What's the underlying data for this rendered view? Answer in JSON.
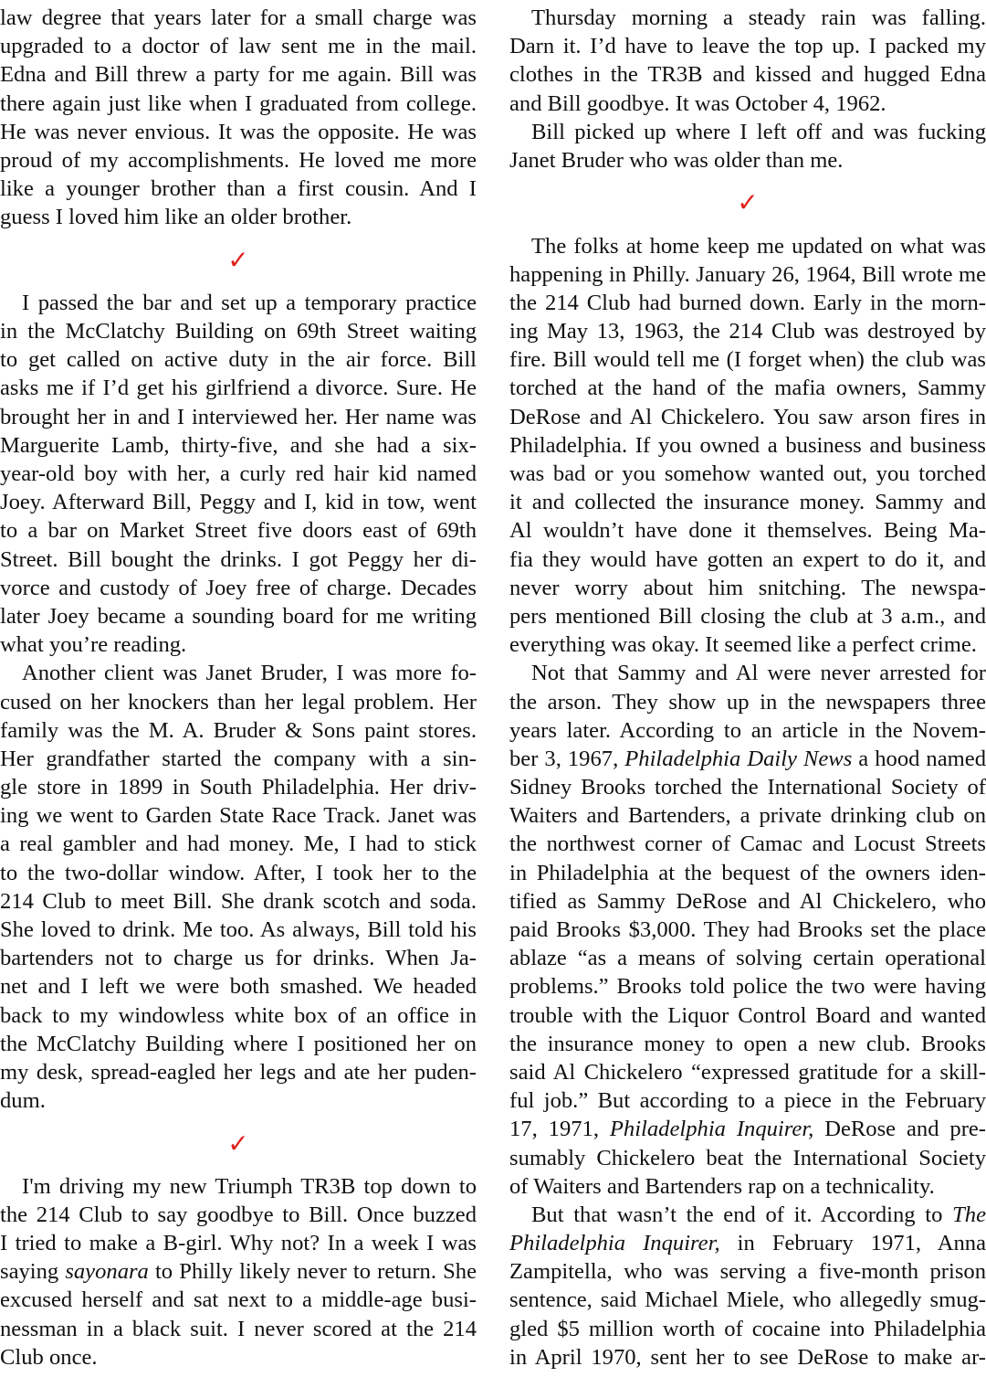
{
  "colors": {
    "text": "#111111",
    "checkmark": "#e0201c"
  },
  "separator_icon": "checkmark-icon",
  "columns": [
    {
      "blocks": [
        {
          "type": "paragraph",
          "indent": false,
          "lines": [
            "law degree that years later for a small charge was",
            "upgraded to a doctor of law sent me in the mail.",
            "Edna and Bill threw a party for me again. Bill was",
            "there again just like when I graduated from college.",
            "He was never envious. It was the opposite. He was",
            "proud of my accomplishments. He loved me more",
            "like a younger brother than a first cousin. And I",
            "guess I loved him like an older brother."
          ]
        },
        {
          "type": "separator",
          "glyph": "✓"
        },
        {
          "type": "paragraph",
          "indent": true,
          "lines": [
            "I passed the bar and set up a temporary practice",
            "in the McClatchy Building on 69th Street waiting",
            "to get called on active duty in the air force. Bill",
            "asks me if I’d get his girlfriend a divorce. Sure. He",
            "brought her in and I interviewed her. Her name was",
            "Marguerite Lamb, thirty-five, and she had a six-",
            "year-old boy with her, a curly red hair kid named",
            "Joey. Afterward Bill, Peggy and I, kid in tow, went",
            "to a bar on Market Street five doors east of 69th",
            "Street. Bill bought the drinks. I got Peggy her di-",
            "vorce and custody of Joey free of charge. Decades",
            "later Joey became a sounding board for me writing",
            "what you’re reading."
          ]
        },
        {
          "type": "paragraph",
          "indent": true,
          "lines": [
            "Another client was Janet Bruder, I was more fo-",
            "cused on her knockers than her legal problem. Her",
            "family was the M. A. Bruder & Sons paint stores.",
            "Her grandfather started the company with a sin-",
            "gle store in 1899 in South Philadelphia. Her driv-",
            "ing we went to Garden State Race Track. Janet was",
            "a real gambler and had money. Me, I had to stick",
            "to the two-dollar window. After, I took her to the",
            "214 Club to meet Bill. She drank scotch and soda.",
            "She loved to drink. Me too. As always, Bill told his",
            "bartenders not to charge us for drinks. When Ja-",
            "net and I left we were both smashed. We headed",
            "back to my windowless white box of an office in",
            "the McClatchy Building where I positioned her on",
            "my desk, spread-eagled her legs and ate her puden-",
            "dum."
          ]
        },
        {
          "type": "separator",
          "glyph": "✓"
        },
        {
          "type": "paragraph",
          "indent": true,
          "lines": [
            "I'm driving my new Triumph TR3B top down to",
            "the 214 Club to say goodbye to Bill. Once buzzed",
            "I tried to make a B-girl. Why not? In a week I was",
            [
              {
                "text": "saying "
              },
              {
                "text": "sayonara",
                "italic": true
              },
              {
                "text": " to Philly likely never to return. She"
              }
            ],
            "excused herself and sat next to a middle-age busi-",
            "nessman in a black suit. I never scored at the 214",
            "Club once."
          ]
        }
      ]
    },
    {
      "blocks": [
        {
          "type": "paragraph",
          "indent": true,
          "lines": [
            "Thursday morning a steady rain was falling.",
            "Darn it. I’d have to leave the top up. I packed my",
            "clothes in the TR3B and kissed and hugged Edna",
            "and Bill goodbye. It was October 4, 1962."
          ]
        },
        {
          "type": "paragraph",
          "indent": true,
          "lines": [
            "Bill picked up where I left off and was fucking",
            "Janet Bruder who was older than me."
          ]
        },
        {
          "type": "separator",
          "glyph": "✓"
        },
        {
          "type": "paragraph",
          "indent": true,
          "lines": [
            "The folks at home keep me updated on what was",
            "happening in Philly. January 26, 1964, Bill wrote me",
            "the 214 Club had burned down. Early in the morn-",
            "ing May 13, 1963, the 214 Club was destroyed by",
            "fire. Bill would tell me (I forget when) the club was",
            "torched at the hand of the mafia owners, Sammy",
            "DeRose and Al Chickelero. You saw arson fires in",
            "Philadelphia. If you owned a business and business",
            "was bad or you somehow wanted out, you torched",
            "it and collected the insurance money. Sammy and",
            "Al wouldn’t have done it themselves. Being Ma-",
            "fia they would have gotten an expert to do it, and",
            "never worry about him snitching. The newspa-",
            "pers mentioned Bill closing the club at 3 a.m., and",
            "everything was okay. It seemed like a perfect crime."
          ]
        },
        {
          "type": "paragraph",
          "indent": true,
          "lines": [
            "Not that Sammy and Al were never arrested for",
            "the arson. They show up in the newspapers three",
            "years later. According to an article in the Novem-",
            [
              {
                "text": "ber 3, 1967, "
              },
              {
                "text": "Philadelphia Daily News",
                "italic": true
              },
              {
                "text": " a hood named"
              }
            ],
            "Sidney Brooks torched the International Society of",
            "Waiters and Bartenders, a private drinking club on",
            "the northwest corner of Camac and Locust Streets",
            "in Philadelphia at the bequest of the owners iden-",
            "tified as Sammy DeRose and Al Chickelero, who",
            "paid Brooks $3,000. They had Brooks set the place",
            "ablaze “as a means of solving certain operational",
            "problems.” Brooks told police the two were having",
            "trouble with the Liquor Control Board and wanted",
            "the insurance money to open a new club. Brooks",
            "said Al Chickelero “expressed gratitude for a skill-",
            "ful job.” But according to a piece in the February",
            [
              {
                "text": "17, 1971, "
              },
              {
                "text": "Philadelphia Inquirer,",
                "italic": true
              },
              {
                "text": " DeRose and pre-"
              }
            ],
            "sumably Chickelero beat the International Society",
            "of Waiters and Bartenders rap on a technicality."
          ]
        },
        {
          "type": "paragraph",
          "indent": true,
          "continues": true,
          "lines": [
            [
              {
                "text": "But that wasn’t the end of it. According to "
              },
              {
                "text": "The",
                "italic": true
              }
            ],
            [
              {
                "text": "Philadelphia Inquirer,",
                "italic": true
              },
              {
                "text": " in February 1971, Anna"
              }
            ],
            "Zampitella, who was serving a five-month prison",
            "sentence, said Michael Miele, who allegedly smug-",
            "gled $5 million worth of cocaine into Philadelphia",
            "in April 1970, sent her to see DeRose to make ar-"
          ]
        }
      ]
    }
  ]
}
